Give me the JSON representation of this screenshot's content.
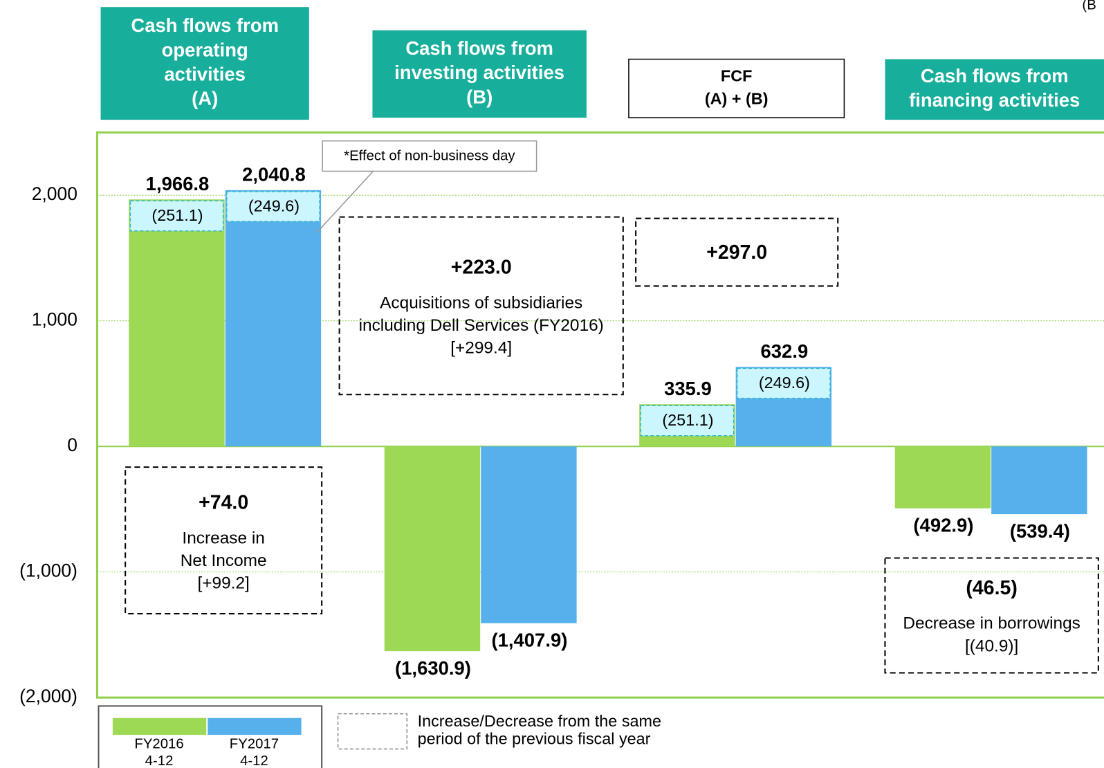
{
  "chart_data": {
    "type": "bar",
    "unit": "(B",
    "categories": [
      [
        "Cash flows from",
        "operating",
        "activities",
        "(A)"
      ],
      [
        "Cash flows from",
        "investing activities",
        "(B)"
      ],
      [
        "FCF",
        "(A) + (B)"
      ],
      [
        "Cash flows from",
        "financing  activities"
      ]
    ],
    "header_colors": [
      "#17AE9B",
      "#17AE9B",
      "#ffffff",
      "#17AE9B"
    ],
    "series": [
      {
        "name": "FY2016 4-12",
        "color": "#9ED955",
        "values": [
          1966.8,
          -1630.9,
          335.9,
          -492.9
        ],
        "value_labels": [
          "1,966.8",
          "(1,630.9)",
          "335.9",
          "(492.9)"
        ],
        "effects": [
          -251.1,
          null,
          -251.1,
          null
        ],
        "effect_labels": [
          "(251.1)",
          null,
          "(251.1)",
          null
        ]
      },
      {
        "name": "FY2017 4-12",
        "color": "#55B0EC",
        "values": [
          2040.8,
          -1407.9,
          632.9,
          -539.4
        ],
        "value_labels": [
          "2,040.8",
          "(1,407.9)",
          "632.9",
          "(539.4)"
        ],
        "effects": [
          -249.6,
          null,
          -249.6,
          null
        ],
        "effect_labels": [
          "(249.6)",
          null,
          "(249.6)",
          null
        ]
      }
    ],
    "ylim": [
      -2000,
      2500
    ],
    "yticks": [
      {
        "value": -2000,
        "label": "(2,000)"
      },
      {
        "value": -1000,
        "label": "(1,000)"
      },
      0,
      {
        "value": 1000,
        "label": "1,000"
      },
      {
        "value": 2000,
        "label": "2,000"
      }
    ],
    "grid": true,
    "annotations": [
      {
        "headline": "+74.0",
        "lines": [
          "Increase in",
          "Net Income",
          "[+99.2]"
        ]
      },
      {
        "headline": "+223.0",
        "lines": [
          "Acquisitions of subsidiaries",
          "including Dell Services (FY2016)",
          "[+299.4]"
        ]
      },
      {
        "headline": "+297.0",
        "lines": []
      },
      {
        "headline": "(46.5)",
        "lines": [
          "Decrease in borrowings",
          "[(40.9)]"
        ]
      }
    ],
    "callout": "*Effect of non-business day",
    "legend_note": [
      "Increase/Decrease from the same",
      "period of the previous fiscal year"
    ]
  }
}
